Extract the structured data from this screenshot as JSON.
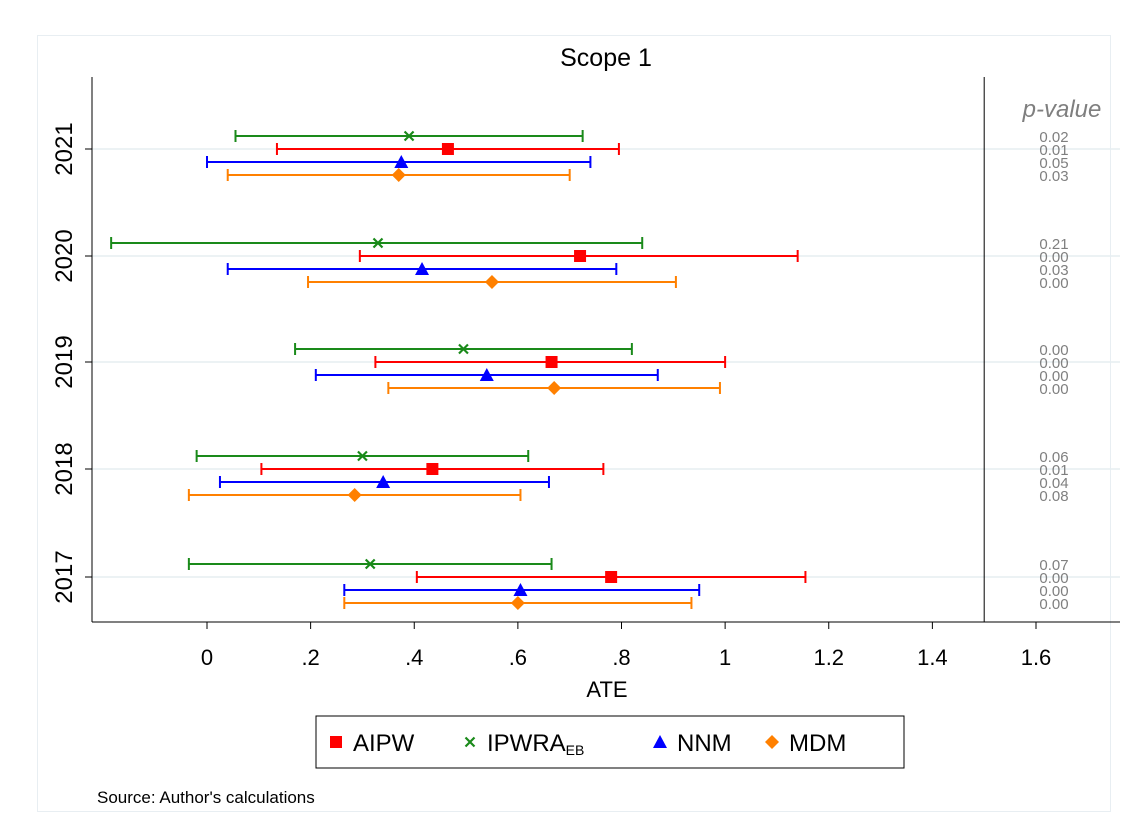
{
  "chart_data": {
    "type": "forest",
    "title": "Scope 1",
    "xlabel": "ATE",
    "x_ticks": [
      "0",
      ".2",
      ".4",
      ".6",
      ".8",
      "1",
      "1.2",
      "1.4",
      "1.6"
    ],
    "x_tick_values": [
      0,
      0.2,
      0.4,
      0.6,
      0.8,
      1.0,
      1.2,
      1.4,
      1.6
    ],
    "xlim": [
      -0.22,
      1.72
    ],
    "reference_line_x": 1.5,
    "pvalue_header": "p-value",
    "categories": [
      "2021",
      "2020",
      "2019",
      "2018",
      "2017"
    ],
    "series": [
      {
        "name": "IPWRA",
        "name_sub": "EB",
        "marker": "x",
        "color": "#1a8a1a",
        "estimates": [
          0.39,
          0.33,
          0.495,
          0.3,
          0.315
        ],
        "ci_low": [
          0.055,
          -0.185,
          0.17,
          -0.02,
          -0.035
        ],
        "ci_high": [
          0.725,
          0.84,
          0.82,
          0.62,
          0.665
        ],
        "p_values": [
          "0.02",
          "0.21",
          "0.00",
          "0.06",
          "0.07"
        ]
      },
      {
        "name": "AIPW",
        "name_sub": "",
        "marker": "square",
        "color": "#ff0000",
        "estimates": [
          0.465,
          0.72,
          0.665,
          0.435,
          0.78
        ],
        "ci_low": [
          0.135,
          0.295,
          0.325,
          0.105,
          0.405
        ],
        "ci_high": [
          0.795,
          1.14,
          1.0,
          0.765,
          1.155
        ],
        "p_values": [
          "0.01",
          "0.00",
          "0.00",
          "0.01",
          "0.00"
        ]
      },
      {
        "name": "NNM",
        "name_sub": "",
        "marker": "triangle",
        "color": "#0000ff",
        "estimates": [
          0.375,
          0.415,
          0.54,
          0.34,
          0.605
        ],
        "ci_low": [
          0.0,
          0.04,
          0.21,
          0.025,
          0.265
        ],
        "ci_high": [
          0.74,
          0.79,
          0.87,
          0.66,
          0.95
        ],
        "p_values": [
          "0.05",
          "0.03",
          "0.00",
          "0.04",
          "0.00"
        ]
      },
      {
        "name": "MDM",
        "name_sub": "",
        "marker": "diamond",
        "color": "#ff8000",
        "estimates": [
          0.37,
          0.55,
          0.67,
          0.285,
          0.6
        ],
        "ci_low": [
          0.04,
          0.195,
          0.35,
          -0.035,
          0.265
        ],
        "ci_high": [
          0.7,
          0.905,
          0.99,
          0.605,
          0.935
        ],
        "p_values": [
          "0.03",
          "0.00",
          "0.00",
          "0.08",
          "0.00"
        ]
      }
    ],
    "legend_order": [
      1,
      0,
      2,
      3
    ],
    "legend_position": "bottom",
    "grid": "horizontal",
    "source": "Source: Author's calculations"
  }
}
